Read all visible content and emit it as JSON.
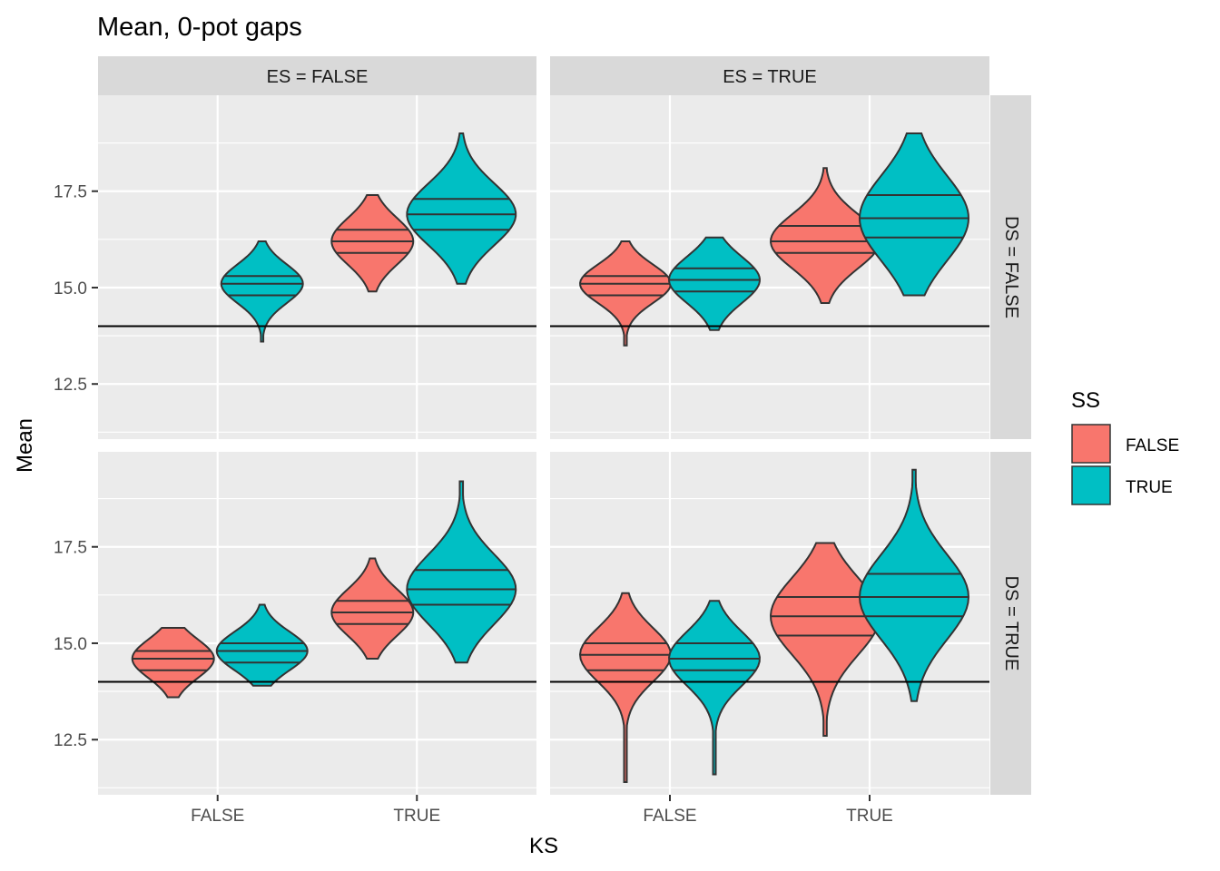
{
  "chart_data": {
    "type": "violin",
    "title": "Mean, 0-pot gaps",
    "xlabel": "KS",
    "ylabel": "Mean",
    "categories": [
      "FALSE",
      "TRUE"
    ],
    "ylim": [
      11.0,
      20.3
    ],
    "yticks": [
      12.5,
      15.0,
      17.5
    ],
    "grid": true,
    "reference_line": 14.0,
    "facet_cols": {
      "var": "ES",
      "labels": [
        "ES = FALSE",
        "ES = TRUE"
      ]
    },
    "facet_rows": {
      "var": "DS",
      "labels": [
        "DS = FALSE",
        "DS = TRUE"
      ]
    },
    "legend": {
      "title": "SS",
      "position": "right",
      "entries": [
        {
          "label": "FALSE",
          "color": "#F8766D"
        },
        {
          "label": "TRUE",
          "color": "#00BFC4"
        }
      ]
    },
    "panels": [
      {
        "col": 0,
        "row": 0,
        "violins": [
          {
            "ks": "TRUE",
            "ss": "FALSE",
            "min": 14.9,
            "max": 17.4,
            "q": [
              15.9,
              16.2,
              16.5
            ],
            "width": 0.45
          },
          {
            "ks": "FALSE",
            "ss": "TRUE",
            "min": 13.6,
            "max": 16.2,
            "q": [
              14.8,
              15.1,
              15.3
            ],
            "width": 0.45
          },
          {
            "ks": "TRUE",
            "ss": "TRUE",
            "min": 15.1,
            "max": 19.0,
            "q": [
              16.5,
              16.9,
              17.3
            ],
            "width": 0.6
          }
        ]
      },
      {
        "col": 1,
        "row": 0,
        "violins": [
          {
            "ks": "FALSE",
            "ss": "FALSE",
            "min": 13.5,
            "max": 16.2,
            "q": [
              14.8,
              15.1,
              15.3
            ],
            "width": 0.5
          },
          {
            "ks": "TRUE",
            "ss": "FALSE",
            "min": 14.6,
            "max": 18.1,
            "q": [
              15.9,
              16.2,
              16.6
            ],
            "width": 0.6
          },
          {
            "ks": "FALSE",
            "ss": "TRUE",
            "min": 13.9,
            "max": 16.3,
            "q": [
              14.9,
              15.2,
              15.5
            ],
            "width": 0.5
          },
          {
            "ks": "TRUE",
            "ss": "TRUE",
            "min": 14.8,
            "max": 19.0,
            "q": [
              16.3,
              16.8,
              17.4
            ],
            "width": 0.6
          }
        ]
      },
      {
        "col": 0,
        "row": 1,
        "violins": [
          {
            "ks": "FALSE",
            "ss": "FALSE",
            "min": 13.6,
            "max": 15.4,
            "q": [
              14.3,
              14.6,
              14.8
            ],
            "width": 0.45
          },
          {
            "ks": "TRUE",
            "ss": "FALSE",
            "min": 14.6,
            "max": 17.2,
            "q": [
              15.5,
              15.8,
              16.1
            ],
            "width": 0.45
          },
          {
            "ks": "FALSE",
            "ss": "TRUE",
            "min": 13.9,
            "max": 16.0,
            "q": [
              14.5,
              14.8,
              15.0
            ],
            "width": 0.5
          },
          {
            "ks": "TRUE",
            "ss": "TRUE",
            "min": 14.5,
            "max": 19.2,
            "q": [
              16.0,
              16.4,
              16.9
            ],
            "width": 0.6
          }
        ]
      },
      {
        "col": 1,
        "row": 1,
        "violins": [
          {
            "ks": "FALSE",
            "ss": "FALSE",
            "min": 11.4,
            "max": 16.3,
            "q": [
              14.3,
              14.7,
              15.0
            ],
            "width": 0.5
          },
          {
            "ks": "TRUE",
            "ss": "FALSE",
            "min": 12.6,
            "max": 17.6,
            "q": [
              15.2,
              15.7,
              16.2
            ],
            "width": 0.6
          },
          {
            "ks": "FALSE",
            "ss": "TRUE",
            "min": 11.6,
            "max": 16.1,
            "q": [
              14.3,
              14.6,
              15.0
            ],
            "width": 0.5
          },
          {
            "ks": "TRUE",
            "ss": "TRUE",
            "min": 13.5,
            "max": 19.5,
            "q": [
              15.7,
              16.2,
              16.8
            ],
            "width": 0.6
          }
        ]
      }
    ]
  }
}
